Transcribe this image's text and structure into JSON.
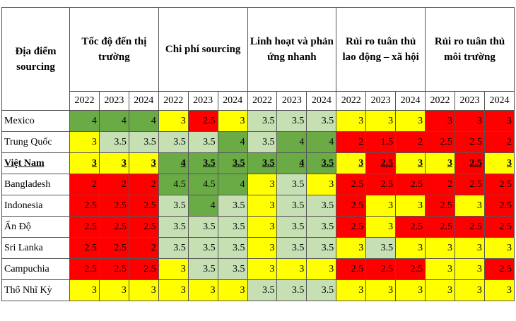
{
  "table": {
    "corner": "Địa điểm sourcing",
    "groups": [
      "Tốc độ đến thị trường",
      "Chi phí sourcing",
      "Linh hoạt và phản ứng nhanh",
      "Rủi ro tuân thủ lao động – xã hội",
      "Rủi ro tuân thủ môi trường"
    ],
    "years": [
      2022,
      2023,
      2024
    ],
    "palette": {
      "g": "#6aab46",
      "l": "#c6e0b4",
      "y": "#ffff00",
      "r": "#ff0000"
    },
    "rows": [
      {
        "label": "Mexico",
        "values": [
          4,
          4,
          4,
          3,
          2.5,
          3,
          3.5,
          3.5,
          3.5,
          3,
          3,
          3,
          3,
          3,
          3
        ],
        "colors": [
          "g",
          "g",
          "g",
          "y",
          "r",
          "y",
          "l",
          "l",
          "l",
          "y",
          "y",
          "y",
          "r",
          "r",
          "r"
        ]
      },
      {
        "label": "Trung Quốc",
        "values": [
          3,
          3.5,
          3.5,
          3.5,
          3.5,
          4,
          3.5,
          4,
          4,
          2,
          1.5,
          2,
          2.5,
          2.5,
          2
        ],
        "colors": [
          "y",
          "l",
          "l",
          "l",
          "l",
          "g",
          "l",
          "g",
          "g",
          "r",
          "r",
          "r",
          "r",
          "r",
          "r"
        ]
      },
      {
        "label": "Việt Nam",
        "emphasis": true,
        "values": [
          3,
          3,
          3,
          4,
          3.5,
          3.5,
          3.5,
          4,
          3.5,
          3,
          2.5,
          3,
          3,
          2.5,
          3
        ],
        "colors": [
          "y",
          "y",
          "y",
          "g",
          "g",
          "g",
          "g",
          "g",
          "g",
          "y",
          "r",
          "y",
          "y",
          "r",
          "y"
        ]
      },
      {
        "label": "Bangladesh",
        "values": [
          2,
          2,
          2,
          4.5,
          4.5,
          4,
          3,
          3.5,
          3,
          2.5,
          2.5,
          2.5,
          2,
          2.5,
          2.5
        ],
        "colors": [
          "r",
          "r",
          "r",
          "g",
          "g",
          "g",
          "y",
          "l",
          "y",
          "r",
          "r",
          "r",
          "r",
          "r",
          "r"
        ]
      },
      {
        "label": "Indonesia",
        "values": [
          2.5,
          2.5,
          2.5,
          3.5,
          4,
          3.5,
          3,
          3.5,
          3.5,
          2.5,
          3,
          3,
          2.5,
          3,
          2.5
        ],
        "colors": [
          "r",
          "r",
          "r",
          "l",
          "g",
          "l",
          "y",
          "l",
          "l",
          "r",
          "y",
          "y",
          "r",
          "y",
          "r"
        ]
      },
      {
        "label": "Ấn Độ",
        "values": [
          2.5,
          2.5,
          2.5,
          3.5,
          3.5,
          3.5,
          3,
          3.5,
          3.5,
          2.5,
          3,
          2.5,
          2.5,
          2.5,
          2.5
        ],
        "colors": [
          "r",
          "r",
          "r",
          "l",
          "l",
          "l",
          "y",
          "l",
          "l",
          "r",
          "y",
          "r",
          "r",
          "r",
          "r"
        ]
      },
      {
        "label": "Sri Lanka",
        "values": [
          2.5,
          2.5,
          2,
          3.5,
          3.5,
          3.5,
          3,
          3.5,
          3.5,
          3,
          3.5,
          3,
          3,
          3,
          3
        ],
        "colors": [
          "r",
          "r",
          "r",
          "l",
          "l",
          "l",
          "y",
          "l",
          "l",
          "y",
          "l",
          "y",
          "y",
          "y",
          "y"
        ]
      },
      {
        "label": "Campuchia",
        "values": [
          2.5,
          2.5,
          2.5,
          3,
          3.5,
          3.5,
          3,
          3,
          3,
          2.5,
          2.5,
          2.5,
          3,
          3,
          2.5
        ],
        "colors": [
          "r",
          "r",
          "r",
          "y",
          "l",
          "l",
          "y",
          "y",
          "y",
          "r",
          "r",
          "r",
          "y",
          "y",
          "r"
        ]
      },
      {
        "label": "Thổ Nhĩ Kỳ",
        "values": [
          3,
          3,
          3,
          3,
          3,
          3,
          3.5,
          3.5,
          3.5,
          3,
          3,
          3,
          3,
          3,
          3
        ],
        "colors": [
          "y",
          "y",
          "y",
          "y",
          "y",
          "y",
          "l",
          "l",
          "l",
          "y",
          "y",
          "y",
          "y",
          "y",
          "y"
        ]
      }
    ]
  }
}
